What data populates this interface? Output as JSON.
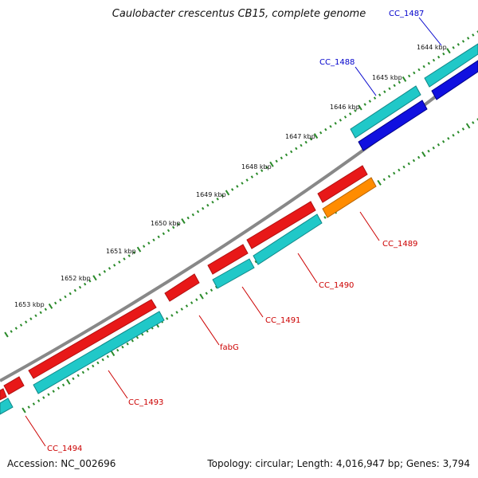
{
  "map_title": "Caulobacter crescentus CB15, complete genome",
  "accession_text": "Accession: NC_002696",
  "summary_text": "Topology: circular; Length: 4,016,947 bp; Genes: 3,794",
  "colors": {
    "backbone": "#888888",
    "forward_tick": "#2a8a2a",
    "reverse_tick": "#2a8a2a",
    "red_gene": "#e81818",
    "cyan_gene": "#20c8c8",
    "blue_gene": "#1010e0",
    "orange_gene": "#ff8c00",
    "label_red": "#cc0000",
    "label_blue": "#0000cc"
  },
  "scale_labels": [
    "1644 kbp",
    "1645 kbp",
    "1646 kbp",
    "1647 kbp",
    "1648 kbp",
    "1649 kbp",
    "1650 kbp",
    "1651 kbp",
    "1652 kbp",
    "1653 kbp"
  ],
  "gene_labels": [
    {
      "text": "CC_1487",
      "color": "blue"
    },
    {
      "text": "CC_1488",
      "color": "blue"
    },
    {
      "text": "CC_1489",
      "color": "red"
    },
    {
      "text": "CC_1490",
      "color": "red"
    },
    {
      "text": "CC_1491",
      "color": "red"
    },
    {
      "text": "fabG",
      "color": "red"
    },
    {
      "text": "CC_1493",
      "color": "red"
    },
    {
      "text": "CC_1494",
      "color": "red"
    }
  ]
}
